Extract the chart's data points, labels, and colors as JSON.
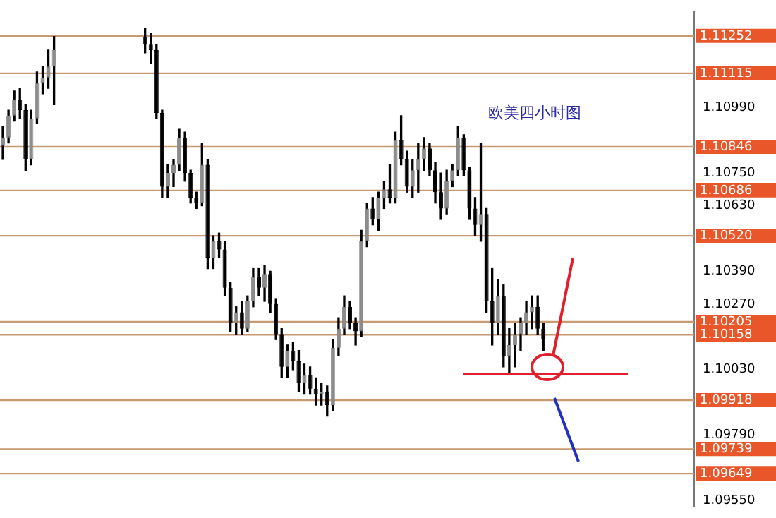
{
  "chart_data": {
    "type": "candlestick",
    "categories": [
      null,
      null,
      null,
      null,
      null,
      null,
      null,
      null,
      null,
      null,
      null,
      null,
      null,
      null,
      null,
      null,
      null,
      null,
      null,
      null,
      null,
      null,
      null,
      null,
      null,
      null,
      null,
      null,
      null,
      null,
      null,
      null,
      null,
      null,
      null,
      null,
      null,
      null,
      null,
      null,
      null,
      null,
      null,
      null,
      null,
      null,
      null,
      null,
      null,
      null,
      null,
      null,
      null,
      null,
      null,
      null,
      null,
      null,
      null,
      null,
      null,
      null,
      null,
      null,
      null,
      null,
      null,
      null,
      null,
      null,
      null,
      null,
      null,
      null,
      null,
      null,
      null,
      null,
      null,
      null,
      null,
      null,
      null,
      null,
      null,
      null,
      null,
      null,
      null,
      null,
      null,
      null,
      null,
      null,
      null,
      null,
      null,
      null,
      null,
      null,
      null,
      null,
      null,
      null,
      null,
      null,
      null,
      null,
      null,
      null,
      null,
      null,
      null,
      null,
      null,
      null,
      null,
      null,
      null,
      null,
      null,
      null
    ],
    "ohlc": [
      [
        1.1085,
        1.1092,
        1.108,
        1.1088
      ],
      [
        1.1088,
        1.1098,
        1.1086,
        1.1096
      ],
      [
        1.1096,
        1.1105,
        1.1094,
        1.1102
      ],
      [
        1.1102,
        1.1106,
        1.1095,
        1.1098
      ],
      [
        1.1098,
        1.11,
        1.1076,
        1.108
      ],
      [
        1.108,
        1.1098,
        1.1078,
        1.1095
      ],
      [
        1.1095,
        1.1112,
        1.1093,
        1.1108
      ],
      [
        1.1108,
        1.1114,
        1.1104,
        1.111
      ],
      [
        1.111,
        1.112,
        1.1106,
        1.1114
      ],
      [
        1.1114,
        1.1125,
        1.11,
        1.112
      ],
      null,
      null,
      null,
      null,
      null,
      null,
      null,
      null,
      null,
      null,
      null,
      null,
      null,
      null,
      null,
      [
        1.1125,
        1.1128,
        1.1119,
        1.1122
      ],
      [
        1.1122,
        1.1126,
        1.1115,
        1.112
      ],
      [
        1.112,
        1.1122,
        1.1095,
        1.1097
      ],
      [
        1.1097,
        1.1098,
        1.1066,
        1.107
      ],
      [
        1.107,
        1.1078,
        1.1066,
        1.1075
      ],
      [
        1.1075,
        1.108,
        1.107,
        1.1078
      ],
      [
        1.1078,
        1.1091,
        1.1076,
        1.1088
      ],
      [
        1.1088,
        1.109,
        1.1072,
        1.1075
      ],
      [
        1.1075,
        1.1076,
        1.1064,
        1.1066
      ],
      [
        1.1066,
        1.1068,
        1.1062,
        1.1064
      ],
      [
        1.1064,
        1.1086,
        1.1063,
        1.1078
      ],
      [
        1.1078,
        1.108,
        1.104,
        1.1044
      ],
      [
        1.1044,
        1.1052,
        1.104,
        1.105
      ],
      [
        1.105,
        1.1053,
        1.1044,
        1.1047
      ],
      [
        1.1047,
        1.105,
        1.103,
        1.1033
      ],
      [
        1.1033,
        1.1035,
        1.1017,
        1.102
      ],
      [
        1.102,
        1.1026,
        1.1016,
        1.1024
      ],
      [
        1.1024,
        1.1028,
        1.1016,
        1.1018
      ],
      [
        1.1018,
        1.103,
        1.1017,
        1.1028
      ],
      [
        1.1028,
        1.104,
        1.1026,
        1.1037
      ],
      [
        1.1037,
        1.104,
        1.103,
        1.1033
      ],
      [
        1.1033,
        1.1041,
        1.1028,
        1.1038
      ],
      [
        1.1038,
        1.1039,
        1.1024,
        1.1027
      ],
      [
        1.1027,
        1.1029,
        1.1014,
        1.1016
      ],
      [
        1.1016,
        1.1018,
        1.1,
        1.1004
      ],
      [
        1.1004,
        1.1012,
        1.1,
        1.101
      ],
      [
        1.101,
        1.1013,
        1.1003,
        1.1006
      ],
      [
        1.1006,
        1.101,
        1.0995,
        1.0998
      ],
      [
        1.0998,
        1.1005,
        1.0994,
        1.1001
      ],
      [
        1.1001,
        1.1004,
        1.0994,
        1.0996
      ],
      [
        1.0996,
        1.1,
        1.099,
        1.0994
      ],
      [
        1.0994,
        1.0998,
        1.099,
        1.0995
      ],
      [
        1.0995,
        1.0997,
        1.0986,
        1.099
      ],
      [
        1.099,
        1.1014,
        1.0988,
        1.1011
      ],
      [
        1.1011,
        1.1022,
        1.1008,
        1.1018
      ],
      [
        1.1018,
        1.103,
        1.1016,
        1.1026
      ],
      [
        1.1026,
        1.1028,
        1.1018,
        1.102
      ],
      [
        1.102,
        1.1022,
        1.1012,
        1.1017
      ],
      [
        1.1017,
        1.1054,
        1.1015,
        1.105
      ],
      [
        1.105,
        1.1064,
        1.1048,
        1.1062
      ],
      [
        1.1062,
        1.1066,
        1.1056,
        1.1058
      ],
      [
        1.1058,
        1.1068,
        1.1054,
        1.1066
      ],
      [
        1.1066,
        1.1072,
        1.1062,
        1.1069
      ],
      [
        1.1069,
        1.1078,
        1.1064,
        1.1066
      ],
      [
        1.1066,
        1.109,
        1.1064,
        1.1087
      ],
      [
        1.1087,
        1.1096,
        1.1078,
        1.108
      ],
      [
        1.108,
        1.1083,
        1.1068,
        1.107
      ],
      [
        1.107,
        1.108,
        1.1066,
        1.1076
      ],
      [
        1.1076,
        1.1086,
        1.1068,
        1.108
      ],
      [
        1.108,
        1.1088,
        1.1076,
        1.1084
      ],
      [
        1.1084,
        1.1086,
        1.1074,
        1.1076
      ],
      [
        1.1076,
        1.1079,
        1.1064,
        1.1068
      ],
      [
        1.1068,
        1.1075,
        1.1058,
        1.1062
      ],
      [
        1.1062,
        1.1076,
        1.106,
        1.1072
      ],
      [
        1.1072,
        1.1078,
        1.107,
        1.1076
      ],
      [
        1.1076,
        1.1092,
        1.1074,
        1.1088
      ],
      [
        1.1088,
        1.1089,
        1.1074,
        1.1076
      ],
      [
        1.1076,
        1.1077,
        1.1058,
        1.1062
      ],
      [
        1.1062,
        1.1066,
        1.1052,
        1.1056
      ],
      [
        1.1056,
        1.1086,
        1.105,
        1.106
      ],
      [
        1.106,
        1.1062,
        1.1024,
        1.1028
      ],
      [
        1.1028,
        1.104,
        1.1012,
        1.102
      ],
      [
        1.102,
        1.1036,
        1.1016,
        1.103
      ],
      [
        1.103,
        1.1034,
        1.1004,
        1.1008
      ],
      [
        1.1008,
        1.1018,
        1.1002,
        1.1012
      ],
      [
        1.1012,
        1.102,
        1.1004,
        1.1016
      ],
      [
        1.1016,
        1.1022,
        1.101,
        1.102
      ],
      [
        1.102,
        1.1028,
        1.1016,
        1.1024
      ],
      [
        1.1024,
        1.103,
        1.1018,
        1.1026
      ],
      [
        1.1026,
        1.103,
        1.1016,
        1.1018
      ],
      [
        1.1018,
        1.102,
        1.101,
        1.1014
      ],
      null,
      null,
      null,
      null,
      null,
      null,
      null,
      null,
      null,
      null,
      null,
      null,
      null,
      null,
      null,
      null,
      null,
      null,
      null,
      null,
      null,
      null,
      null,
      null,
      null,
      null
    ],
    "ylim": [
      1.0953,
      1.1134
    ],
    "yticks": [
      {
        "value": 1.1099,
        "label": "1.10990"
      },
      {
        "value": 1.1075,
        "label": "1.10750"
      },
      {
        "value": 1.1063,
        "label": "1.10630"
      },
      {
        "value": 1.1039,
        "label": "1.10390"
      },
      {
        "value": 1.1027,
        "label": "1.10270"
      },
      {
        "value": 1.1003,
        "label": "1.10030"
      },
      {
        "value": 1.0979,
        "label": "1.09790"
      },
      {
        "value": 1.0955,
        "label": "1.09550"
      }
    ],
    "ref_lines": [
      {
        "axis": "y",
        "value": 1.11252,
        "label": "1.11252",
        "color": "#c89a70"
      },
      {
        "axis": "y",
        "value": 1.11115,
        "label": "1.11115",
        "color": "#c89a70"
      },
      {
        "axis": "y",
        "value": 1.10846,
        "label": "1.10846",
        "color": "#c89a70"
      },
      {
        "axis": "y",
        "value": 1.10686,
        "label": "1.10686",
        "color": "#c89a70"
      },
      {
        "axis": "y",
        "value": 1.1052,
        "label": "1.10520",
        "color": "#c89a70"
      },
      {
        "axis": "y",
        "value": 1.10205,
        "label": "1.10205",
        "color": "#c89a70"
      },
      {
        "axis": "y",
        "value": 1.10158,
        "label": "1.10158",
        "color": "#c89a70"
      },
      {
        "axis": "y",
        "value": 1.09918,
        "label": "1.09918",
        "color": "#c89a70"
      },
      {
        "axis": "y",
        "value": 1.09739,
        "label": "1.09739",
        "color": "#c89a70"
      },
      {
        "axis": "y",
        "value": 1.09649,
        "label": "1.09649",
        "color": "#c89a70"
      }
    ],
    "annotations": [
      "欧美四小时图"
    ],
    "grid": false,
    "legend": false,
    "tick_labels": "y"
  }
}
